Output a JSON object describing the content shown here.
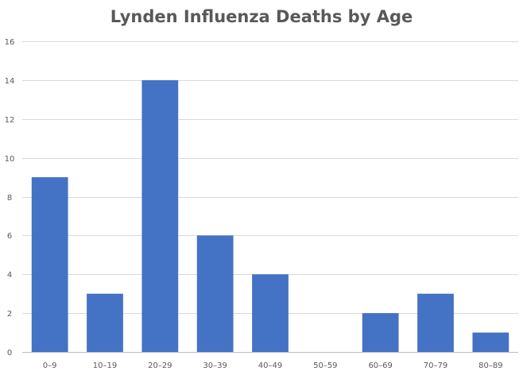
{
  "chart_data": {
    "type": "bar",
    "title": "Lynden Influenza Deaths by Age",
    "xlabel": "",
    "ylabel": "",
    "categories": [
      "0–9",
      "10–19",
      "20–29",
      "30–39",
      "40–49",
      "50–59",
      "60–69",
      "70–79",
      "80–89"
    ],
    "values": [
      9,
      3,
      14,
      6,
      4,
      0,
      2,
      3,
      1
    ],
    "ylim": [
      0,
      16
    ],
    "yticks": [
      "0",
      "2",
      "4",
      "6",
      "8",
      "10",
      "12",
      "14",
      "16"
    ],
    "grid": true,
    "legend": "none",
    "bar_color": "#4472C4",
    "grid_color": "#D9D9D9",
    "axis_color": "#BFBFBF",
    "text_color": "#595959"
  }
}
